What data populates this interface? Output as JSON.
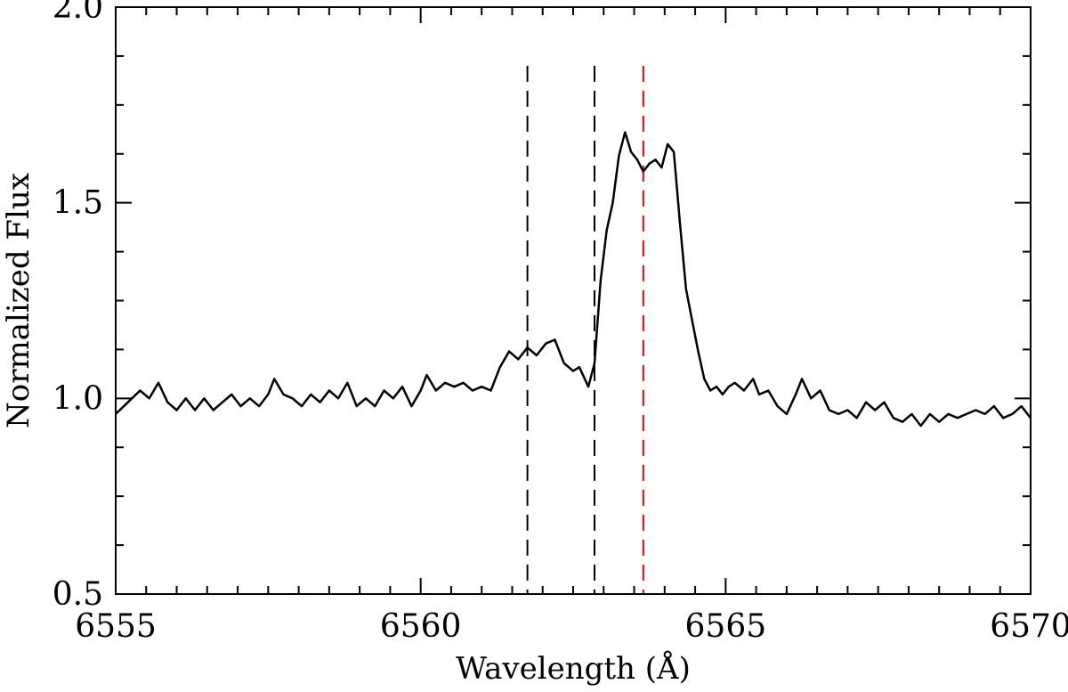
{
  "chart_data": {
    "type": "line",
    "title": "",
    "xlabel": "Wavelength (Å)",
    "ylabel": "Normalized Flux",
    "xlim": [
      6555,
      6570
    ],
    "ylim": [
      0.5,
      2.0
    ],
    "x_ticks": [
      6555,
      6560,
      6565,
      6570
    ],
    "x_tick_labels": [
      "6555",
      "6560",
      "6565",
      "6570"
    ],
    "y_ticks": [
      0.5,
      1.0,
      1.5,
      2.0
    ],
    "y_tick_labels": [
      "0.5",
      "1.0",
      "1.5",
      "2.0"
    ],
    "x_minor_step": 0.5,
    "y_minor_step": 0.125,
    "grid": false,
    "legend": "none",
    "colors": {
      "spectrum": "#000000",
      "reference_line_black": "#000000",
      "reference_line_red": "#e8000b"
    },
    "series": [
      {
        "points": [
          [
            6555.0,
            0.96
          ],
          [
            6555.2,
            0.99
          ],
          [
            6555.4,
            1.02
          ],
          [
            6555.55,
            1.0
          ],
          [
            6555.7,
            1.04
          ],
          [
            6555.85,
            0.99
          ],
          [
            6556.0,
            0.97
          ],
          [
            6556.15,
            1.0
          ],
          [
            6556.3,
            0.97
          ],
          [
            6556.45,
            1.0
          ],
          [
            6556.6,
            0.97
          ],
          [
            6556.75,
            0.99
          ],
          [
            6556.9,
            1.01
          ],
          [
            6557.05,
            0.98
          ],
          [
            6557.2,
            1.0
          ],
          [
            6557.35,
            0.98
          ],
          [
            6557.5,
            1.01
          ],
          [
            6557.6,
            1.05
          ],
          [
            6557.75,
            1.01
          ],
          [
            6557.9,
            1.0
          ],
          [
            6558.05,
            0.98
          ],
          [
            6558.2,
            1.01
          ],
          [
            6558.35,
            0.99
          ],
          [
            6558.5,
            1.02
          ],
          [
            6558.65,
            1.0
          ],
          [
            6558.8,
            1.04
          ],
          [
            6558.95,
            0.98
          ],
          [
            6559.1,
            1.0
          ],
          [
            6559.25,
            0.98
          ],
          [
            6559.4,
            1.02
          ],
          [
            6559.55,
            1.0
          ],
          [
            6559.7,
            1.03
          ],
          [
            6559.85,
            0.98
          ],
          [
            6560.0,
            1.02
          ],
          [
            6560.1,
            1.06
          ],
          [
            6560.25,
            1.02
          ],
          [
            6560.4,
            1.04
          ],
          [
            6560.55,
            1.03
          ],
          [
            6560.7,
            1.04
          ],
          [
            6560.85,
            1.02
          ],
          [
            6561.0,
            1.03
          ],
          [
            6561.15,
            1.02
          ],
          [
            6561.3,
            1.08
          ],
          [
            6561.45,
            1.12
          ],
          [
            6561.6,
            1.1
          ],
          [
            6561.75,
            1.13
          ],
          [
            6561.9,
            1.11
          ],
          [
            6562.05,
            1.14
          ],
          [
            6562.2,
            1.15
          ],
          [
            6562.35,
            1.09
          ],
          [
            6562.5,
            1.07
          ],
          [
            6562.6,
            1.08
          ],
          [
            6562.75,
            1.03
          ],
          [
            6562.85,
            1.09
          ],
          [
            6562.95,
            1.3
          ],
          [
            6563.05,
            1.43
          ],
          [
            6563.15,
            1.5
          ],
          [
            6563.25,
            1.62
          ],
          [
            6563.35,
            1.68
          ],
          [
            6563.45,
            1.63
          ],
          [
            6563.55,
            1.61
          ],
          [
            6563.65,
            1.58
          ],
          [
            6563.75,
            1.6
          ],
          [
            6563.85,
            1.61
          ],
          [
            6563.95,
            1.59
          ],
          [
            6564.05,
            1.65
          ],
          [
            6564.15,
            1.63
          ],
          [
            6564.25,
            1.45
          ],
          [
            6564.35,
            1.28
          ],
          [
            6564.45,
            1.2
          ],
          [
            6564.55,
            1.12
          ],
          [
            6564.65,
            1.05
          ],
          [
            6564.75,
            1.02
          ],
          [
            6564.85,
            1.03
          ],
          [
            6564.95,
            1.01
          ],
          [
            6565.05,
            1.03
          ],
          [
            6565.15,
            1.04
          ],
          [
            6565.3,
            1.02
          ],
          [
            6565.45,
            1.05
          ],
          [
            6565.55,
            1.01
          ],
          [
            6565.7,
            1.02
          ],
          [
            6565.85,
            0.98
          ],
          [
            6566.0,
            0.96
          ],
          [
            6566.15,
            1.01
          ],
          [
            6566.25,
            1.05
          ],
          [
            6566.4,
            1.0
          ],
          [
            6566.55,
            1.02
          ],
          [
            6566.7,
            0.97
          ],
          [
            6566.85,
            0.96
          ],
          [
            6567.0,
            0.97
          ],
          [
            6567.15,
            0.95
          ],
          [
            6567.3,
            0.99
          ],
          [
            6567.45,
            0.97
          ],
          [
            6567.6,
            0.99
          ],
          [
            6567.75,
            0.95
          ],
          [
            6567.9,
            0.94
          ],
          [
            6568.05,
            0.96
          ],
          [
            6568.2,
            0.93
          ],
          [
            6568.35,
            0.96
          ],
          [
            6568.5,
            0.94
          ],
          [
            6568.65,
            0.96
          ],
          [
            6568.8,
            0.95
          ],
          [
            6568.95,
            0.96
          ],
          [
            6569.1,
            0.97
          ],
          [
            6569.25,
            0.96
          ],
          [
            6569.4,
            0.98
          ],
          [
            6569.55,
            0.95
          ],
          [
            6569.7,
            0.96
          ],
          [
            6569.85,
            0.98
          ],
          [
            6570.0,
            0.95
          ]
        ]
      }
    ],
    "reference_lines": [
      {
        "x": 6561.75,
        "style": "dashed",
        "color": "#000000"
      },
      {
        "x": 6562.85,
        "style": "dashed",
        "color": "#000000"
      },
      {
        "x": 6563.65,
        "style": "dashed",
        "color": "#e8000b"
      }
    ]
  }
}
